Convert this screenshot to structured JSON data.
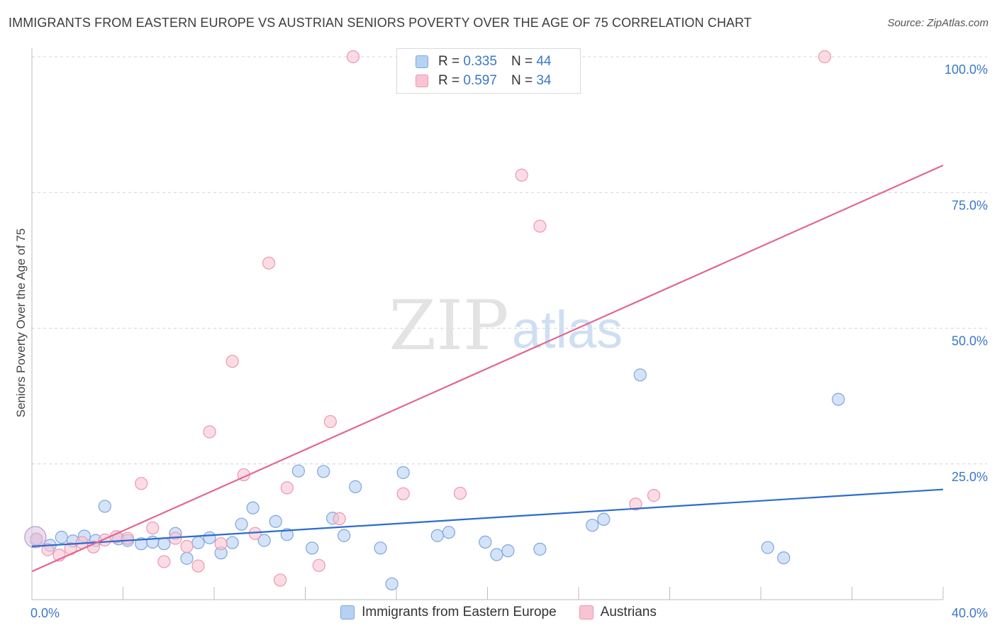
{
  "chart_data": {
    "type": "scatter",
    "title": "IMMIGRANTS FROM EASTERN EUROPE VS AUSTRIAN SENIORS POVERTY OVER THE AGE OF 75 CORRELATION CHART",
    "source": "Source: ZipAtlas.com",
    "xlabel": "",
    "ylabel": "Seniors Poverty Over the Age of 75",
    "xlim": [
      0,
      40
    ],
    "ylim": [
      0,
      100
    ],
    "x_tick_labels": {
      "left": "0.0%",
      "right": "40.0%"
    },
    "y_ticks": [
      {
        "value": 25,
        "label": "25.0%"
      },
      {
        "value": 50,
        "label": "50.0%"
      },
      {
        "value": 75,
        "label": "75.0%"
      },
      {
        "value": 100,
        "label": "100.0%"
      }
    ],
    "watermark": {
      "zip": "ZIP",
      "atlas": "atlas"
    },
    "legend": [
      {
        "r_label": "R =",
        "r_value": "0.335",
        "n_label": "N =",
        "n_value": "44"
      },
      {
        "r_label": "R =",
        "r_value": "0.597",
        "n_label": "N =",
        "n_value": "34"
      }
    ],
    "series": [
      {
        "name": "Immigrants from Eastern Europe",
        "fill": "#b7d1f3",
        "stroke": "#7ea6dd",
        "line_color": "#2b6ccf",
        "trend": {
          "x0": 0,
          "y0": 9.8,
          "x1": 40,
          "y1": 20.3
        },
        "points": [
          [
            0.2,
            11.0
          ],
          [
            0.8,
            10.0
          ],
          [
            1.3,
            11.5
          ],
          [
            1.8,
            10.8
          ],
          [
            2.3,
            11.7
          ],
          [
            2.8,
            10.9
          ],
          [
            3.2,
            17.2
          ],
          [
            3.8,
            11.2
          ],
          [
            4.2,
            10.9
          ],
          [
            4.8,
            10.3
          ],
          [
            5.3,
            10.6
          ],
          [
            5.8,
            10.3
          ],
          [
            6.3,
            12.2
          ],
          [
            6.8,
            7.6
          ],
          [
            7.3,
            10.5
          ],
          [
            7.8,
            11.4
          ],
          [
            8.3,
            8.6
          ],
          [
            8.8,
            10.5
          ],
          [
            9.2,
            13.9
          ],
          [
            9.7,
            16.9
          ],
          [
            10.2,
            10.9
          ],
          [
            10.7,
            14.4
          ],
          [
            11.2,
            12.0
          ],
          [
            11.7,
            23.7
          ],
          [
            12.3,
            9.5
          ],
          [
            12.8,
            23.6
          ],
          [
            13.2,
            15.0
          ],
          [
            13.7,
            11.8
          ],
          [
            14.2,
            20.8
          ],
          [
            15.3,
            9.5
          ],
          [
            16.3,
            23.4
          ],
          [
            15.8,
            2.9
          ],
          [
            17.8,
            11.8
          ],
          [
            18.3,
            12.4
          ],
          [
            19.9,
            10.6
          ],
          [
            20.4,
            8.3
          ],
          [
            20.9,
            9.0
          ],
          [
            22.3,
            9.3
          ],
          [
            24.6,
            13.7
          ],
          [
            25.1,
            14.8
          ],
          [
            26.7,
            41.4
          ],
          [
            32.3,
            9.6
          ],
          [
            33.0,
            7.7
          ],
          [
            35.4,
            36.9
          ]
        ]
      },
      {
        "name": "Austrians",
        "fill": "#f8c4d3",
        "stroke": "#ee95ae",
        "line_color": "#e06791",
        "trend": {
          "x0": 0,
          "y0": 5.2,
          "x1": 40,
          "y1": 80.0
        },
        "points": [
          [
            0.2,
            11.2
          ],
          [
            0.7,
            9.2
          ],
          [
            1.2,
            8.2
          ],
          [
            1.7,
            9.4
          ],
          [
            2.2,
            10.5
          ],
          [
            2.7,
            9.7
          ],
          [
            3.2,
            11.0
          ],
          [
            3.7,
            11.6
          ],
          [
            4.2,
            11.3
          ],
          [
            4.8,
            21.4
          ],
          [
            5.3,
            13.2
          ],
          [
            5.8,
            7.0
          ],
          [
            6.3,
            11.3
          ],
          [
            6.8,
            9.8
          ],
          [
            7.3,
            6.2
          ],
          [
            7.8,
            30.9
          ],
          [
            8.3,
            10.3
          ],
          [
            8.8,
            43.9
          ],
          [
            9.3,
            23.0
          ],
          [
            9.8,
            12.2
          ],
          [
            10.4,
            62.0
          ],
          [
            10.9,
            3.6
          ],
          [
            11.2,
            20.6
          ],
          [
            12.6,
            6.3
          ],
          [
            13.1,
            32.8
          ],
          [
            13.5,
            14.9
          ],
          [
            14.1,
            100.0
          ],
          [
            16.3,
            19.5
          ],
          [
            18.8,
            19.6
          ],
          [
            21.5,
            78.2
          ],
          [
            22.3,
            68.8
          ],
          [
            26.5,
            17.6
          ],
          [
            27.3,
            19.2
          ],
          [
            34.8,
            100.0
          ]
        ]
      }
    ]
  }
}
